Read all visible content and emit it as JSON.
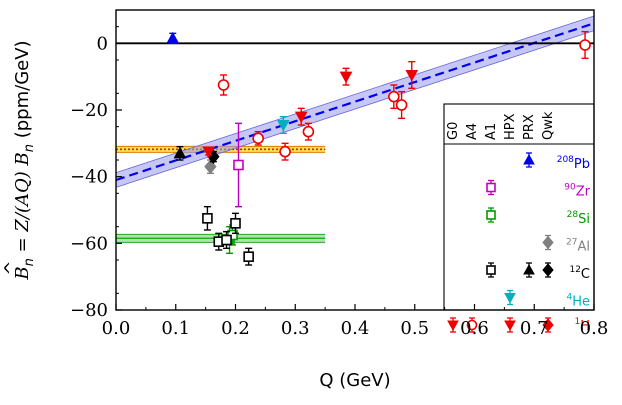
{
  "chart_data": {
    "type": "scatter",
    "title": "",
    "xlabel": "Q (GeV)",
    "ylabel_prefix": "B",
    "ylabel_sub": "n",
    "ylabel_rest": " = Z/(AQ) B",
    "ylabel_rest_sub": "n",
    "ylabel_units": " (ppm/GeV)",
    "xlim": [
      0.0,
      0.8
    ],
    "ylim": [
      -80,
      10
    ],
    "x_ticks": [
      "0.0",
      "0.1",
      "0.2",
      "0.3",
      "0.4",
      "0.5",
      "0.6",
      "0.7",
      "0.8"
    ],
    "y_ticks": [
      "0",
      "−20",
      "−40",
      "−60",
      "−80"
    ],
    "fit_line": {
      "x": [
        0.0,
        0.8
      ],
      "y": [
        -41.0,
        6.0
      ],
      "band": 2.2,
      "color": "#0000ee"
    },
    "bands": [
      {
        "name": "Si band",
        "xrange": [
          0.0,
          0.35
        ],
        "y": -58.5,
        "half": 1.2,
        "color": "#22aa22",
        "fill": "#aaddaa"
      },
      {
        "name": "C band",
        "xrange": [
          0.0,
          0.35
        ],
        "y": -31.8,
        "half": 0.9,
        "color": "#e07a00",
        "fill": "#f5e040"
      }
    ],
    "series": [
      {
        "name": "Pb",
        "color": "#0000ee",
        "marker": "triangle-up",
        "filled": true,
        "points": [
          {
            "x": 0.095,
            "y": 1.5,
            "err": 1.5
          }
        ]
      },
      {
        "name": "Zr",
        "color": "#c000c0",
        "marker": "square",
        "filled": false,
        "points": [
          {
            "x": 0.205,
            "y": -36.5,
            "err": 12.5
          }
        ]
      },
      {
        "name": "Si",
        "color": "#009900",
        "marker": "square",
        "filled": false,
        "points": [
          {
            "x": 0.19,
            "y": -59.0,
            "err": 4.0
          },
          {
            "x": 0.195,
            "y": -57.5,
            "err": 3.0
          }
        ]
      },
      {
        "name": "Al",
        "color": "#808080",
        "marker": "diamond",
        "filled": true,
        "points": [
          {
            "x": 0.158,
            "y": -37.0,
            "err": 2.0
          }
        ]
      },
      {
        "name": "C_HPX",
        "color": "#000000",
        "marker": "triangle-up",
        "filled": true,
        "points": [
          {
            "x": 0.107,
            "y": -33.0,
            "err": 2.0
          }
        ]
      },
      {
        "name": "C_Qwk",
        "color": "#000000",
        "marker": "diamond",
        "filled": true,
        "points": [
          {
            "x": 0.163,
            "y": -34.0,
            "err": 1.5
          }
        ]
      },
      {
        "name": "C_A1",
        "color": "#000000",
        "marker": "square",
        "filled": false,
        "points": [
          {
            "x": 0.153,
            "y": -52.5,
            "err": 3.5
          },
          {
            "x": 0.172,
            "y": -59.5,
            "err": 2.5
          },
          {
            "x": 0.185,
            "y": -59.0,
            "err": 2.5
          },
          {
            "x": 0.2,
            "y": -54.0,
            "err": 3.0
          },
          {
            "x": 0.222,
            "y": -64.0,
            "err": 2.5
          }
        ]
      },
      {
        "name": "He",
        "color": "#00b0c0",
        "marker": "triangle-down",
        "filled": true,
        "points": [
          {
            "x": 0.28,
            "y": -24.5,
            "err": 2.5
          }
        ]
      },
      {
        "name": "H_G0",
        "color": "#ee0000",
        "marker": "triangle-down",
        "filled": true,
        "points": [
          {
            "x": 0.155,
            "y": -32.5,
            "err": 1.0
          },
          {
            "x": 0.31,
            "y": -22.0,
            "err": 2.5
          },
          {
            "x": 0.385,
            "y": -10.0,
            "err": 2.5
          },
          {
            "x": 0.495,
            "y": -9.5,
            "err": 4.0
          }
        ]
      },
      {
        "name": "H_A4",
        "color": "#ee0000",
        "marker": "circle",
        "filled": false,
        "points": [
          {
            "x": 0.18,
            "y": -12.5,
            "err": 3.0
          },
          {
            "x": 0.238,
            "y": -28.5,
            "err": 2.0
          },
          {
            "x": 0.283,
            "y": -32.5,
            "err": 2.5
          },
          {
            "x": 0.322,
            "y": -26.5,
            "err": 2.5
          },
          {
            "x": 0.465,
            "y": -16.0,
            "err": 3.5
          },
          {
            "x": 0.478,
            "y": -18.5,
            "err": 4.0
          },
          {
            "x": 0.785,
            "y": -0.5,
            "err": 4.0
          }
        ]
      }
    ],
    "legend": {
      "placement": "right",
      "columns": [
        "G0",
        "A4",
        "A1",
        "HPX",
        "PRX",
        "Qwk"
      ],
      "rows": [
        {
          "label": "Pb",
          "mass": "208",
          "color": "#0000ee"
        },
        {
          "label": "Zr",
          "mass": "90",
          "color": "#c000c0"
        },
        {
          "label": "Si",
          "mass": "28",
          "color": "#009900"
        },
        {
          "label": "Al",
          "mass": "27",
          "color": "#808080"
        },
        {
          "label": "C",
          "mass": "12",
          "color": "#000000"
        },
        {
          "label": "He",
          "mass": "4",
          "color": "#00b0c0"
        },
        {
          "label": "H",
          "mass": "1",
          "color": "#ee0000"
        }
      ],
      "entries": [
        {
          "row": 0,
          "col": 4,
          "marker": "triangle-up",
          "filled": true,
          "color": "#0000ee"
        },
        {
          "row": 1,
          "col": 2,
          "marker": "square",
          "filled": false,
          "color": "#c000c0"
        },
        {
          "row": 2,
          "col": 2,
          "marker": "square",
          "filled": false,
          "color": "#009900"
        },
        {
          "row": 3,
          "col": 5,
          "marker": "diamond",
          "filled": true,
          "color": "#808080"
        },
        {
          "row": 4,
          "col": 2,
          "marker": "square",
          "filled": false,
          "color": "#000000"
        },
        {
          "row": 4,
          "col": 4,
          "marker": "triangle-up",
          "filled": true,
          "color": "#000000"
        },
        {
          "row": 4,
          "col": 5,
          "marker": "diamond",
          "filled": true,
          "color": "#000000"
        },
        {
          "row": 5,
          "col": 3,
          "marker": "triangle-down",
          "filled": true,
          "color": "#00b0c0"
        },
        {
          "row": 6,
          "col": 0,
          "marker": "triangle-down",
          "filled": true,
          "color": "#ee0000"
        },
        {
          "row": 6,
          "col": 1,
          "marker": "circle",
          "filled": false,
          "color": "#ee0000"
        },
        {
          "row": 6,
          "col": 3,
          "marker": "triangle-down",
          "filled": true,
          "color": "#ee0000"
        },
        {
          "row": 6,
          "col": 5,
          "marker": "diamond",
          "filled": true,
          "color": "#ee0000"
        }
      ]
    }
  }
}
